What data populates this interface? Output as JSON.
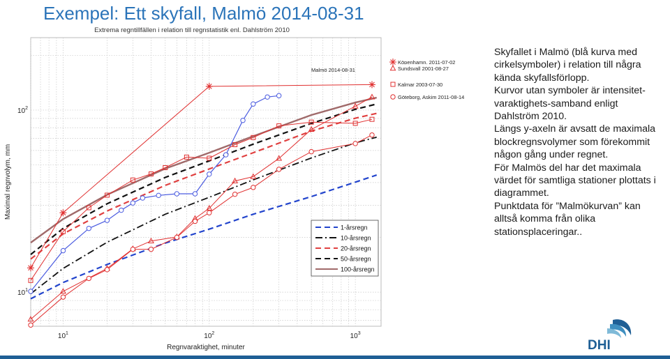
{
  "slide": {
    "title": "Exempel: Ett skyfall, Malmö 2014-08-31",
    "description": [
      "Skyfallet i Malmö (blå kurva med cirkelsymboler) i relation till några kända skyfallsförlopp.",
      "Kurvor utan symboler är intensitet-varaktighets-samband enligt Dahlström 2010.",
      "Längs y-axeln är avsatt de maximala blockregnsvolymer som förekommit någon gång under regnet.",
      "För Malmös del har det maximala värdet för samtliga stationer plottats i diagrammet.",
      "Punktdata för ”Malmökurvan” kan alltså komma från olika stationsplaceringar.."
    ],
    "logo_text": "DHI",
    "colors": {
      "title": "#2b74b9",
      "bottom_rule": "#1f5f95",
      "logo": "#1f5f95"
    }
  },
  "chart_data": {
    "type": "line",
    "title": "Extrema regntillfällen i relation till regnstatistik enl. Dahlström 2010",
    "xlabel": "Regnvaraktighet, minuter",
    "ylabel": "Maximal regnvolym, mm",
    "x_scale": "log",
    "y_scale": "log",
    "xlim": [
      6,
      1500
    ],
    "ylim": [
      6.5,
      250
    ],
    "x_ticks": [
      {
        "base": "10",
        "exp": "1",
        "value": 10
      },
      {
        "base": "10",
        "exp": "2",
        "value": 100
      },
      {
        "base": "10",
        "exp": "3",
        "value": 1000
      }
    ],
    "y_ticks": [
      {
        "base": "10",
        "exp": "1",
        "value": 10
      },
      {
        "base": "10",
        "exp": "2",
        "value": 100
      }
    ],
    "grid": "on",
    "legend_position": "bottom-right",
    "legend": [
      {
        "label": "1-årsregn",
        "color": "#2244cc",
        "dash": "dash"
      },
      {
        "label": "10-årsregn",
        "color": "#111111",
        "dash": "dashdot"
      },
      {
        "label": "20-årsregn",
        "color": "#e04040",
        "dash": "dash"
      },
      {
        "label": "50-årsregn",
        "color": "#111111",
        "dash": "dash"
      },
      {
        "label": "100-årsregn",
        "color": "#a06a6a",
        "dash": "solid"
      }
    ],
    "series": [
      {
        "name": "1-årsregn",
        "style": "dash",
        "color": "#2244cc",
        "width": 2.2,
        "x": [
          6,
          10,
          20,
          50,
          100,
          200,
          500,
          1000,
          1400
        ],
        "y": [
          9.2,
          11.3,
          14.2,
          18.6,
          22.2,
          26.8,
          33.5,
          40.2,
          44
        ]
      },
      {
        "name": "10-årsregn",
        "style": "dashdot",
        "color": "#111111",
        "width": 1.8,
        "x": [
          6,
          10,
          20,
          50,
          100,
          200,
          500,
          1000,
          1400
        ],
        "y": [
          9.8,
          13.5,
          18.8,
          26.8,
          33.2,
          41.4,
          54.6,
          66.1,
          71
        ]
      },
      {
        "name": "20-årsregn",
        "style": "dash",
        "color": "#e04040",
        "width": 2.2,
        "x": [
          6,
          10,
          20,
          50,
          100,
          200,
          500,
          1000,
          1400
        ],
        "y": [
          15.2,
          20.9,
          27.9,
          38.6,
          47.5,
          58.3,
          76.7,
          90.2,
          96
        ]
      },
      {
        "name": "50-årsregn",
        "style": "dash",
        "color": "#111111",
        "width": 2.2,
        "x": [
          6,
          10,
          20,
          50,
          100,
          200,
          500,
          1000,
          1400
        ],
        "y": [
          16.1,
          22.4,
          30.6,
          42.7,
          52.6,
          65.0,
          84.5,
          101,
          108
        ]
      },
      {
        "name": "100-årsregn",
        "style": "solid",
        "color": "#a06a6a",
        "width": 2.4,
        "x": [
          6,
          10,
          20,
          50,
          100,
          200,
          500,
          1000,
          1400
        ],
        "y": [
          18.7,
          25.2,
          34.3,
          47.7,
          58.3,
          71.9,
          94.0,
          110,
          117
        ]
      },
      {
        "name": "Malmö 2014-08-31",
        "marker": "circle",
        "color": "#4a5be0",
        "width": 1.2,
        "x": [
          6,
          10,
          15,
          20,
          25,
          30,
          35,
          45,
          60,
          80,
          100,
          130,
          170,
          200,
          250,
          300
        ],
        "y": [
          10.1,
          16.9,
          22.4,
          24.8,
          28.2,
          30.9,
          32.9,
          34.0,
          34.7,
          34.7,
          44.5,
          56.8,
          87.8,
          108,
          118,
          120
        ]
      },
      {
        "name": "Köpenhamn, 2011-07-02",
        "marker": "star",
        "color": "#e03030",
        "width": 1.0,
        "x": [
          6,
          10,
          100,
          1300
        ],
        "y": [
          13.6,
          27.3,
          135,
          138
        ]
      },
      {
        "name": "Sundsvall 2001-08-27",
        "marker": "triangle",
        "color": "#e03030",
        "width": 1.0,
        "x": [
          6,
          10,
          20,
          30,
          40,
          60,
          80,
          100,
          150,
          200,
          300,
          500,
          1000,
          1300
        ],
        "y": [
          7.1,
          10.1,
          13.5,
          17.3,
          19.1,
          20.1,
          25.4,
          28.9,
          40.8,
          43.1,
          54.3,
          78.3,
          105,
          118
        ]
      },
      {
        "name": "Kalmar 2003-07-30",
        "marker": "square",
        "color": "#e03030",
        "width": 1.0,
        "x": [
          6,
          10,
          15,
          20,
          30,
          40,
          50,
          70,
          100,
          150,
          200,
          300,
          500,
          1000,
          1300
        ],
        "y": [
          11.6,
          21.5,
          29.1,
          34.1,
          41.3,
          44.6,
          48.3,
          55.2,
          54.4,
          64.6,
          70.7,
          81.9,
          85.9,
          84.6,
          89
        ]
      },
      {
        "name": "Göteborg, Askim 2011-08-14",
        "marker": "circle-open",
        "color": "#e03030",
        "width": 1.0,
        "x": [
          6,
          10,
          15,
          20,
          30,
          40,
          60,
          80,
          100,
          150,
          200,
          300,
          500,
          1000,
          1300
        ],
        "y": [
          6.6,
          9.4,
          11.9,
          13.3,
          17.2,
          17.2,
          20.0,
          24.5,
          27.3,
          34.5,
          37.6,
          47.3,
          59.1,
          65.5,
          73
        ]
      }
    ],
    "annotations": [
      {
        "text": "Köpenhamn, 2011-07-02",
        "series": "Köpenhamn, 2011-07-02"
      },
      {
        "text": "Sundsvall 2001-08-27",
        "series": "Sundsvall 2001-08-27"
      },
      {
        "text": "Kalmar 2003-07-30",
        "series": "Kalmar 2003-07-30"
      },
      {
        "text": "Göteborg, Askim 2011-08-14",
        "series": "Göteborg, Askim 2011-08-14"
      },
      {
        "text": "Malmö 2014-08-31",
        "series": "Malmö 2014-08-31"
      }
    ]
  }
}
